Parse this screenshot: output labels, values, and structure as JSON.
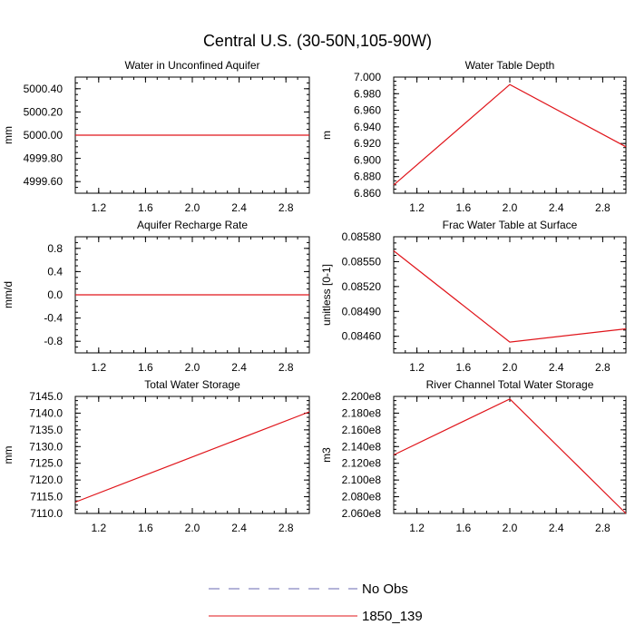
{
  "figure": {
    "title": "Central U.S. (30-50N,105-90W)"
  },
  "legend": [
    {
      "label": "No Obs",
      "style": "dashed",
      "color": "#6a6ab0"
    },
    {
      "label": "1850_139",
      "style": "solid",
      "color": "#e0141a"
    }
  ],
  "chart_data": [
    {
      "type": "line",
      "title": "Water in Unconfined Aquifer",
      "ylabel": "mm",
      "xlim": [
        1.0,
        3.0
      ],
      "ylim": [
        4999.5,
        5000.5
      ],
      "xticks": [
        1.2,
        1.6,
        2.0,
        2.4,
        2.8
      ],
      "xtick_labels": [
        "1.2",
        "1.6",
        "2.0",
        "2.4",
        "2.8"
      ],
      "yticks": [
        4999.6,
        4999.8,
        5000.0,
        5000.2,
        5000.4
      ],
      "ytick_labels": [
        "4999.60",
        "4999.80",
        "5000.00",
        "5000.20",
        "5000.40"
      ],
      "series": [
        {
          "x": [
            1,
            2,
            3
          ],
          "y": [
            5000.0,
            5000.0,
            5000.0
          ],
          "color": "#e0141a"
        }
      ]
    },
    {
      "type": "line",
      "title": "Water Table Depth",
      "ylabel": "m",
      "xlim": [
        1.0,
        3.0
      ],
      "ylim": [
        6.86,
        7.0
      ],
      "xticks": [
        1.2,
        1.6,
        2.0,
        2.4,
        2.8
      ],
      "xtick_labels": [
        "1.2",
        "1.6",
        "2.0",
        "2.4",
        "2.8"
      ],
      "yticks": [
        6.86,
        6.88,
        6.9,
        6.92,
        6.94,
        6.96,
        6.98,
        7.0
      ],
      "ytick_labels": [
        "6.860",
        "6.880",
        "6.900",
        "6.920",
        "6.940",
        "6.960",
        "6.980",
        "7.000"
      ],
      "series": [
        {
          "x": [
            1,
            2,
            3
          ],
          "y": [
            6.87,
            6.991,
            6.916
          ],
          "color": "#e0141a"
        }
      ]
    },
    {
      "type": "line",
      "title": "Aquifer Recharge Rate",
      "ylabel": "mm/d",
      "xlim": [
        1.0,
        3.0
      ],
      "ylim": [
        -1.0,
        1.0
      ],
      "xticks": [
        1.2,
        1.6,
        2.0,
        2.4,
        2.8
      ],
      "xtick_labels": [
        "1.2",
        "1.6",
        "2.0",
        "2.4",
        "2.8"
      ],
      "yticks": [
        -0.8,
        -0.4,
        0.0,
        0.4,
        0.8
      ],
      "ytick_labels": [
        "-0.8",
        "-0.4",
        "0.0",
        "0.4",
        "0.8"
      ],
      "series": [
        {
          "x": [
            1,
            2,
            3
          ],
          "y": [
            0.0,
            0.0,
            0.0
          ],
          "color": "#e0141a"
        }
      ]
    },
    {
      "type": "line",
      "title": "Frac Water Table at Surface",
      "ylabel": "unitless [0-1]",
      "xlim": [
        1.0,
        3.0
      ],
      "ylim": [
        0.0844,
        0.0858
      ],
      "xticks": [
        1.2,
        1.6,
        2.0,
        2.4,
        2.8
      ],
      "xtick_labels": [
        "1.2",
        "1.6",
        "2.0",
        "2.4",
        "2.8"
      ],
      "yticks": [
        0.0846,
        0.0849,
        0.0852,
        0.0855,
        0.0858
      ],
      "ytick_labels": [
        "0.08460",
        "0.08490",
        "0.08520",
        "0.08550",
        "0.08580"
      ],
      "series": [
        {
          "x": [
            1,
            2,
            3
          ],
          "y": [
            0.08563,
            0.08453,
            0.08469
          ],
          "color": "#e0141a"
        }
      ]
    },
    {
      "type": "line",
      "title": "Total Water Storage",
      "ylabel": "mm",
      "xlim": [
        1.0,
        3.0
      ],
      "ylim": [
        7110.0,
        7145.0
      ],
      "xticks": [
        1.2,
        1.6,
        2.0,
        2.4,
        2.8
      ],
      "xtick_labels": [
        "1.2",
        "1.6",
        "2.0",
        "2.4",
        "2.8"
      ],
      "yticks": [
        7110,
        7115,
        7120,
        7125,
        7130,
        7135,
        7140,
        7145
      ],
      "ytick_labels": [
        "7110.0",
        "7115.0",
        "7120.0",
        "7125.0",
        "7130.0",
        "7135.0",
        "7140.0",
        "7145.0"
      ],
      "series": [
        {
          "x": [
            1,
            3
          ],
          "y": [
            7113.4,
            7140.4
          ],
          "color": "#e0141a"
        }
      ]
    },
    {
      "type": "line",
      "title": "River Channel Total Water Storage",
      "ylabel": "m3",
      "xlim": [
        1.0,
        3.0
      ],
      "ylim": [
        206000000,
        220000000
      ],
      "xticks": [
        1.2,
        1.6,
        2.0,
        2.4,
        2.8
      ],
      "xtick_labels": [
        "1.2",
        "1.6",
        "2.0",
        "2.4",
        "2.8"
      ],
      "yticks": [
        206000000,
        208000000,
        210000000,
        212000000,
        214000000,
        216000000,
        218000000,
        220000000
      ],
      "ytick_labels": [
        "2.060e8",
        "2.080e8",
        "2.100e8",
        "2.120e8",
        "2.140e8",
        "2.160e8",
        "2.180e8",
        "2.200e8"
      ],
      "series": [
        {
          "x": [
            1,
            2,
            3
          ],
          "y": [
            213000000,
            219700000,
            206000000
          ],
          "color": "#e0141a"
        }
      ]
    }
  ]
}
